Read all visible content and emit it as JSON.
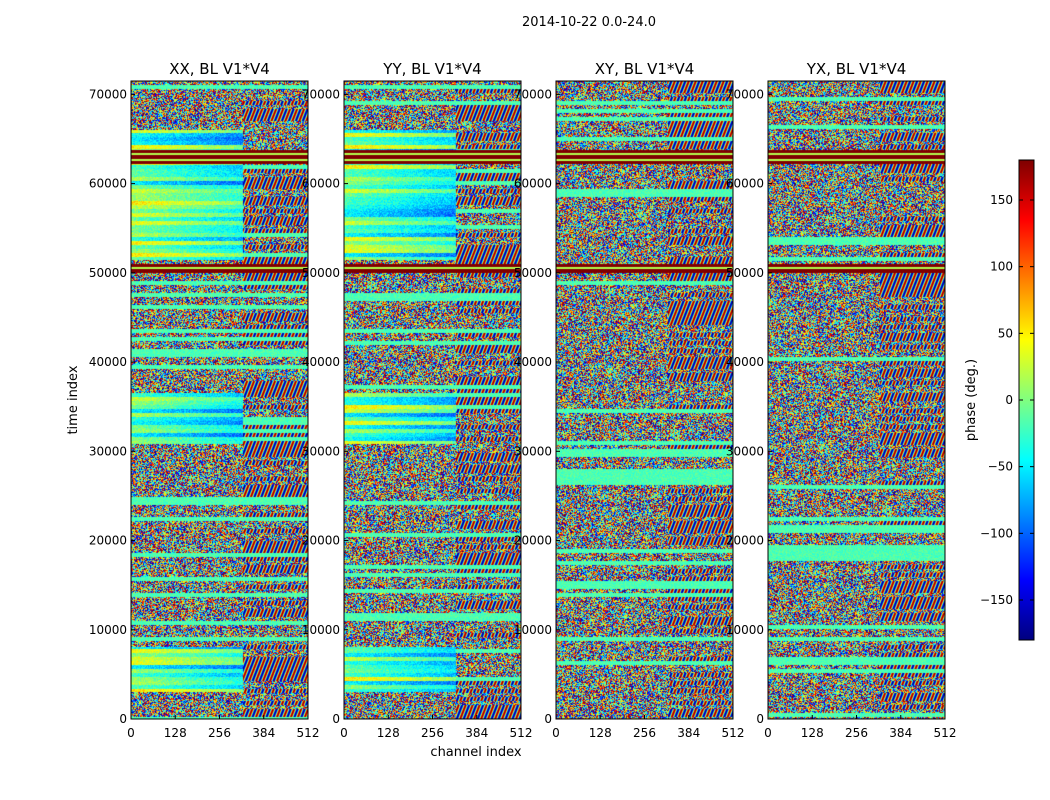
{
  "chart_data": {
    "type": "heatmap",
    "suptitle": "2014-10-22 0.0-24.0",
    "xlabel": "channel index",
    "ylabel": "time index",
    "xlim": [
      0,
      512
    ],
    "ylim": [
      0,
      71500
    ],
    "xticks": [
      0,
      128,
      256,
      384,
      512
    ],
    "yticks": [
      0,
      10000,
      20000,
      30000,
      40000,
      50000,
      60000,
      70000
    ],
    "panels": [
      {
        "title": "XX, BL V1*V4",
        "coherent": true,
        "coherent_bands": [
          [
            3000,
            8000
          ],
          [
            30800,
            36500
          ],
          [
            51500,
            66000
          ]
        ]
      },
      {
        "title": "YY, BL V1*V4",
        "coherent": true,
        "coherent_bands": [
          [
            3000,
            8000
          ],
          [
            30800,
            36500
          ],
          [
            51500,
            66000
          ]
        ]
      },
      {
        "title": "XY, BL V1*V4",
        "coherent": false,
        "coherent_bands": []
      },
      {
        "title": "YX, BL V1*V4",
        "coherent": false,
        "coherent_bands": []
      }
    ],
    "saturated_bands": [
      [
        50000,
        51000
      ],
      [
        62200,
        63800
      ]
    ],
    "colorbar": {
      "label": "phase (deg.)",
      "range": [
        -180,
        180
      ],
      "ticks": [
        -150,
        -100,
        -50,
        0,
        50,
        100,
        150
      ],
      "colormap": "jet",
      "colors": [
        "#00007f",
        "#0000ff",
        "#0080ff",
        "#00ffff",
        "#80ff80",
        "#ffff00",
        "#ff8000",
        "#ff0000",
        "#7f0000"
      ]
    },
    "grid": false,
    "legend": "none"
  }
}
